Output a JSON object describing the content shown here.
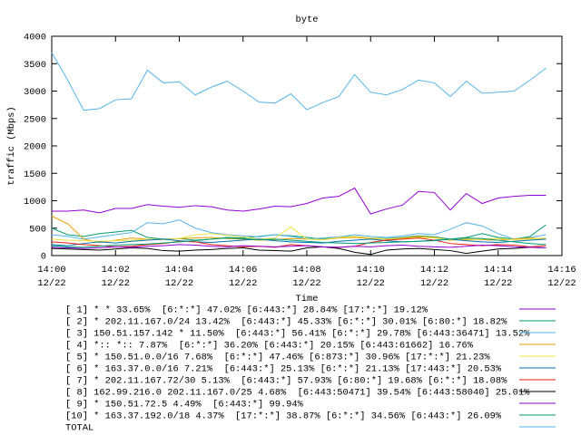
{
  "chart_data": {
    "type": "line",
    "title": "byte",
    "xlabel": "Time",
    "ylabel": "traffic (Mbps)",
    "x": [
      "14:00:00",
      "14:00:30",
      "14:01:00",
      "14:01:30",
      "14:02:00",
      "14:02:30",
      "14:03:00",
      "14:03:30",
      "14:04:00",
      "14:04:30",
      "14:05:00",
      "14:05:30",
      "14:06:00",
      "14:06:30",
      "14:07:00",
      "14:07:30",
      "14:08:00",
      "14:08:30",
      "14:09:00",
      "14:09:30",
      "14:10:00",
      "14:10:30",
      "14:11:00",
      "14:11:30",
      "14:12:00",
      "14:12:30",
      "14:13:00",
      "14:13:30",
      "14:14:00",
      "14:14:30",
      "14:15:00",
      "14:15:30"
    ],
    "xlim": [
      "14:00",
      "14:16"
    ],
    "xticks": [
      {
        "value": "14:00",
        "label": "14:00\n12/22"
      },
      {
        "value": "14:02",
        "label": "14:02\n12/22"
      },
      {
        "value": "14:04",
        "label": "14:04\n12/22"
      },
      {
        "value": "14:06",
        "label": "14:06\n12/22"
      },
      {
        "value": "14:08",
        "label": "14:08\n12/22"
      },
      {
        "value": "14:10",
        "label": "14:10\n12/22"
      },
      {
        "value": "14:12",
        "label": "14:12\n12/22"
      },
      {
        "value": "14:14",
        "label": "14:14\n12/22"
      },
      {
        "value": "14:16",
        "label": "14:16\n12/22"
      }
    ],
    "ylim": [
      0,
      4000
    ],
    "yticks": [
      0,
      500,
      1000,
      1500,
      2000,
      2500,
      3000,
      3500,
      4000
    ],
    "grid": false,
    "series": [
      {
        "name": "[ 1] * * 33.65%  [6:*:*] 47.02% [6:443:*] 28.84% [17:*:*] 19.12%",
        "color": "#9400d3",
        "values": [
          810,
          810,
          830,
          780,
          860,
          860,
          930,
          900,
          880,
          910,
          890,
          830,
          810,
          850,
          900,
          890,
          950,
          1050,
          1080,
          1230,
          760,
          850,
          920,
          1170,
          1150,
          830,
          1130,
          950,
          1050,
          1080,
          1100,
          1100
        ]
      },
      {
        "name": "[ 2] * 202.11.167.0/24 13.42%  [6:443:*] 45.33% [6:*:*] 30.01% [6:80:*] 18.82%",
        "color": "#009e73",
        "values": [
          500,
          380,
          350,
          400,
          430,
          460,
          330,
          300,
          310,
          280,
          300,
          330,
          320,
          350,
          380,
          360,
          330,
          300,
          340,
          350,
          320,
          310,
          330,
          360,
          340,
          300,
          330,
          400,
          330,
          300,
          350,
          560
        ]
      },
      {
        "name": "[ 3] 150.51.157.142 * 11.50%  [6:443:*] 56.41% [6:*:*] 29.78% [6:443:36471] 13.52%",
        "color": "#56b4e9",
        "values": [
          380,
          350,
          300,
          340,
          380,
          420,
          600,
          580,
          650,
          500,
          420,
          380,
          360,
          340,
          380,
          350,
          300,
          320,
          340,
          380,
          350,
          330,
          360,
          400,
          380,
          480,
          600,
          540,
          400,
          300,
          330,
          380
        ]
      },
      {
        "name": "[ 4] *:: *:: 7.87%  [6:*:*] 36.20% [6:443:*] 20.15% [6:443:61662] 16.76%",
        "color": "#e69f00",
        "values": [
          720,
          580,
          300,
          240,
          280,
          320,
          300,
          290,
          310,
          320,
          330,
          310,
          300,
          280,
          290,
          310,
          300,
          290,
          320,
          330,
          310,
          300,
          320,
          350,
          330,
          280,
          300,
          290,
          280,
          300,
          320,
          300
        ]
      },
      {
        "name": "[ 5] * 150.51.0.0/16 7.68%  [6:*:*] 47.46% [6:873:*] 30.96% [17:*:*] 21.23%",
        "color": "#f0e442",
        "values": [
          300,
          280,
          270,
          260,
          270,
          280,
          300,
          290,
          310,
          380,
          400,
          370,
          340,
          300,
          320,
          520,
          300,
          290,
          330,
          350,
          320,
          300,
          310,
          330,
          320,
          290,
          280,
          300,
          310,
          290,
          300,
          320
        ]
      },
      {
        "name": "[ 6] * 163.37.0.0/16 7.21%  [6:443:*] 25.13% [6:*:*] 21.13% [17:443:*] 20.53%",
        "color": "#0072b2",
        "values": [
          200,
          180,
          220,
          250,
          230,
          260,
          280,
          300,
          270,
          250,
          240,
          260,
          280,
          300,
          270,
          250,
          240,
          230,
          260,
          280,
          300,
          270,
          250,
          260,
          280,
          300,
          270,
          250,
          240,
          260,
          280,
          300
        ]
      },
      {
        "name": "[ 7] * 202.11.167.72/30 5.13%  [6:443:*] 57.93% [6:80:*] 19.68% [6:*:*] 18.08%",
        "color": "#e51e10",
        "values": [
          250,
          230,
          200,
          180,
          160,
          170,
          200,
          220,
          260,
          250,
          200,
          180,
          160,
          170,
          150,
          200,
          180,
          160,
          150,
          170,
          240,
          280,
          300,
          320,
          280,
          220,
          200,
          180,
          200,
          190,
          160,
          180
        ]
      },
      {
        "name": "[ 8] 162.99.216.0 202.11.167.0/25 4.68%  [6:443:50471] 39.54% [6:443:58040] 25.01%",
        "color": "#000000",
        "values": [
          130,
          120,
          110,
          100,
          120,
          140,
          130,
          90,
          80,
          100,
          110,
          130,
          140,
          100,
          90,
          80,
          140,
          160,
          130,
          60,
          20,
          100,
          120,
          130,
          110,
          90,
          40,
          80,
          120,
          130,
          150,
          140
        ]
      },
      {
        "name": "[ 9] * 150.51.72.5 4.49%  [6:443:*] 99.94%",
        "color": "#9400d3",
        "values": [
          150,
          140,
          130,
          140,
          160,
          150,
          170,
          180,
          200,
          190,
          170,
          160,
          180,
          170,
          160,
          170,
          180,
          160,
          150,
          170,
          160,
          180,
          190,
          170,
          160,
          150,
          170,
          190,
          180,
          160,
          150,
          140
        ]
      },
      {
        "name": "[10] * 163.37.192.0/18 4.37%  [17:*:*] 38.87% [6:*:*] 34.56% [6:443:*] 26.09%",
        "color": "#009e73",
        "values": [
          180,
          160,
          150,
          170,
          190,
          200,
          210,
          230,
          250,
          270,
          300,
          320,
          310,
          290,
          300,
          280,
          260,
          240,
          230,
          220,
          230,
          240,
          250,
          260,
          270,
          300,
          320,
          310,
          280,
          250,
          220,
          200
        ]
      },
      {
        "name": "TOTAL",
        "color": "#56b4e9",
        "values": [
          3700,
          3200,
          2650,
          2680,
          2840,
          2860,
          3380,
          3150,
          3170,
          2930,
          3070,
          3180,
          3000,
          2800,
          2780,
          2950,
          2660,
          2790,
          2900,
          3300,
          2980,
          2930,
          3030,
          3200,
          3150,
          2900,
          3180,
          2960,
          2980,
          3000,
          3200,
          3420
        ]
      }
    ]
  }
}
